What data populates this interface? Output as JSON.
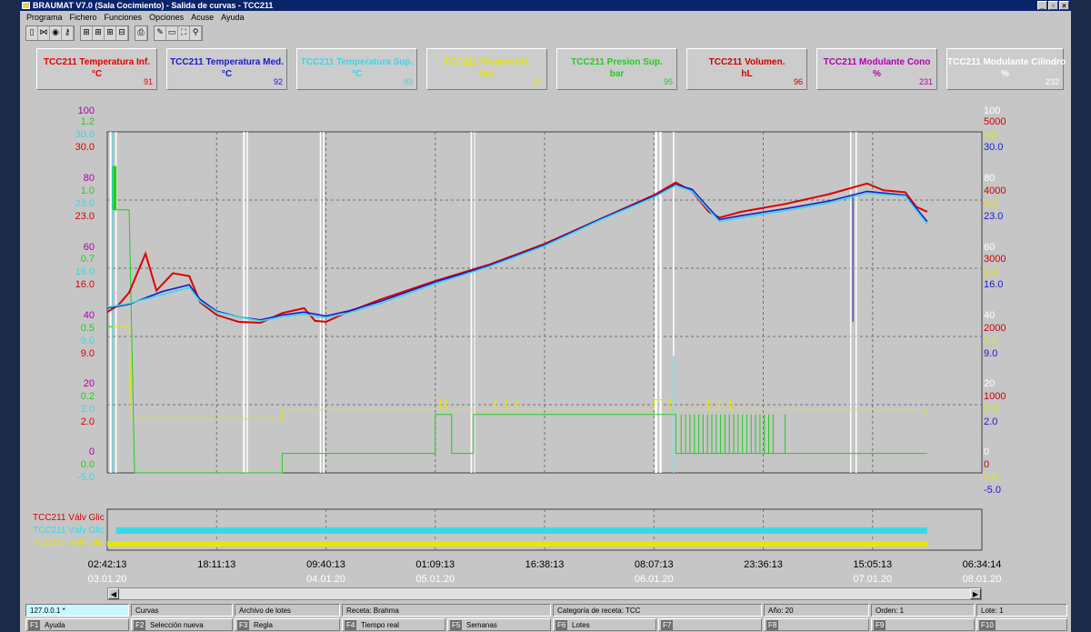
{
  "window": {
    "title": "BRAUMAT V7.0 (Sala Cocimiento) - Salida de curvas - TCC211",
    "buttons": [
      "_",
      "▫",
      "×"
    ]
  },
  "menu": [
    "Programa",
    "Fichero",
    "Funciones",
    "Opciones",
    "Acuse",
    "Ayuda"
  ],
  "toolbar_icons": [
    "document-icon",
    "split-icon",
    "record-icon",
    "key-icon",
    "grid-add-icon",
    "grid-edit-icon",
    "grid-icon",
    "grid-alt-icon",
    "print-icon",
    "edit-icon",
    "window-icon",
    "fit-icon",
    "zoom-icon"
  ],
  "channels": [
    {
      "name": "TCC211 Temperatura Inf.",
      "unit": "°C",
      "num": "91",
      "color": "#dd0000"
    },
    {
      "name": "TCC211 Temperatura Med.",
      "unit": "°C",
      "num": "92",
      "color": "#1a1acc"
    },
    {
      "name": "TCC211 Temperatura Sup.",
      "unit": "°C",
      "num": "93",
      "color": "#39d8e8"
    },
    {
      "name": "TCC211 Presion Inf.",
      "unit": "bar",
      "num": "94",
      "color": "#e6e600"
    },
    {
      "name": "TCC211 Presion Sup.",
      "unit": "bar",
      "num": "95",
      "color": "#22cc22"
    },
    {
      "name": "TCC211 Volumen.",
      "unit": "hL",
      "num": "96",
      "color": "#cc0000"
    },
    {
      "name": "TCC211 Modulante Cono",
      "unit": "%",
      "num": "231",
      "color": "#b000b0"
    },
    {
      "name": "TCC211 Modulante Cilindro",
      "unit": "%",
      "num": "232",
      "color": "#ffffff"
    }
  ],
  "chart_data": {
    "type": "line",
    "x_time_labels": [
      "02:42:13",
      "18:11:13",
      "09:40:13",
      "01:09:13",
      "16:38:13",
      "08:07:13",
      "23:36:13",
      "15:05:13",
      "06:34:14"
    ],
    "x_date_labels": [
      "03.01.20",
      "",
      "04.01.20",
      "05.01.20",
      "",
      "06.01.20",
      "",
      "07.01.20",
      "08.01.20"
    ],
    "left_axes": [
      {
        "color": "#b000b0",
        "ticks": [
          "100",
          "80",
          "60",
          "40",
          "20",
          "0"
        ]
      },
      {
        "color": "#22cc22",
        "ticks": [
          "1.2",
          "1.0",
          "0.7",
          "0.5",
          "0.2",
          "0.0"
        ]
      },
      {
        "color": "#39d8e8",
        "ticks": [
          "30.0",
          "23.0",
          "16.0",
          "9.0",
          "2.0",
          "-5.0"
        ]
      },
      {
        "color": "#dd0000",
        "ticks": [
          "30.0",
          "23.0",
          "16.0",
          "9.0",
          "2.0",
          "-5.0"
        ]
      }
    ],
    "right_axes": [
      {
        "color": "#ffffff",
        "ticks": [
          "100",
          "80",
          "60",
          "40",
          "20",
          "0"
        ]
      },
      {
        "color": "#cc0000",
        "ticks": [
          "5000",
          "4000",
          "3000",
          "2000",
          "1000",
          "0"
        ]
      },
      {
        "color": "#e6e600",
        "ticks": [
          "4.0",
          "3.2",
          "2.4",
          "1.6",
          "0.8",
          "0.0"
        ]
      },
      {
        "color": "#1a1acc",
        "ticks": [
          "30.0",
          "23.0",
          "16.0",
          "9.0",
          "2.0",
          "-5.0"
        ]
      }
    ],
    "x_index_range": [
      0,
      8
    ],
    "temperature_range": [
      -5,
      30
    ],
    "series": [
      {
        "name": "TCC211 Temperatura Inf.",
        "color": "#dd0000",
        "points": [
          [
            0,
            11.5
          ],
          [
            0.1,
            12.2
          ],
          [
            0.2,
            13.5
          ],
          [
            0.35,
            17.5
          ],
          [
            0.45,
            13.7
          ],
          [
            0.6,
            15.5
          ],
          [
            0.75,
            15.2
          ],
          [
            0.85,
            12.5
          ],
          [
            1,
            11.2
          ],
          [
            1.2,
            10.5
          ],
          [
            1.4,
            10.4
          ],
          [
            1.6,
            11.4
          ],
          [
            1.8,
            11.9
          ],
          [
            1.9,
            10.6
          ],
          [
            2.0,
            10.5
          ],
          [
            2.2,
            11.5
          ],
          [
            2.5,
            12.8
          ],
          [
            3,
            14.7
          ],
          [
            3.5,
            16.4
          ],
          [
            4,
            18.5
          ],
          [
            4.5,
            21.0
          ],
          [
            5,
            23.5
          ],
          [
            5.2,
            24.8
          ],
          [
            5.35,
            23.9
          ],
          [
            5.5,
            21.8
          ],
          [
            5.6,
            21.2
          ],
          [
            5.8,
            21.8
          ],
          [
            6.2,
            22.6
          ],
          [
            6.6,
            23.6
          ],
          [
            6.95,
            24.7
          ],
          [
            7.1,
            24.0
          ],
          [
            7.3,
            23.8
          ],
          [
            7.4,
            22.3
          ],
          [
            7.5,
            21.8
          ]
        ]
      },
      {
        "name": "TCC211 Temperatura Med.",
        "color": "#1a1acc",
        "points": [
          [
            0,
            11.9
          ],
          [
            0.2,
            12.3
          ],
          [
            0.5,
            13.6
          ],
          [
            0.75,
            14.3
          ],
          [
            0.85,
            12.8
          ],
          [
            1,
            11.6
          ],
          [
            1.2,
            11.0
          ],
          [
            1.4,
            10.7
          ],
          [
            1.6,
            11.2
          ],
          [
            1.8,
            11.5
          ],
          [
            2.0,
            11.1
          ],
          [
            2.2,
            11.6
          ],
          [
            2.5,
            12.6
          ],
          [
            3,
            14.6
          ],
          [
            3.5,
            16.3
          ],
          [
            4,
            18.4
          ],
          [
            4.5,
            21.0
          ],
          [
            5,
            23.4
          ],
          [
            5.2,
            24.6
          ],
          [
            5.35,
            24.1
          ],
          [
            5.5,
            22.2
          ],
          [
            5.6,
            21.0
          ],
          [
            5.8,
            21.4
          ],
          [
            6.2,
            22.1
          ],
          [
            6.6,
            22.9
          ],
          [
            6.95,
            23.9
          ],
          [
            7.3,
            23.5
          ],
          [
            7.5,
            20.8
          ]
        ]
      },
      {
        "name": "TCC211 Temperatura Sup.",
        "color": "#39d8e8",
        "points": [
          [
            0,
            12.0
          ],
          [
            0.2,
            12.4
          ],
          [
            0.5,
            13.3
          ],
          [
            0.75,
            14.0
          ],
          [
            0.85,
            12.6
          ],
          [
            1,
            11.5
          ],
          [
            1.2,
            11.0
          ],
          [
            1.4,
            10.6
          ],
          [
            1.6,
            11.0
          ],
          [
            1.8,
            11.3
          ],
          [
            2.0,
            10.9
          ],
          [
            2.2,
            11.4
          ],
          [
            2.5,
            12.4
          ],
          [
            3,
            14.4
          ],
          [
            3.5,
            16.2
          ],
          [
            4,
            18.3
          ],
          [
            4.5,
            20.9
          ],
          [
            5,
            23.3
          ],
          [
            5.2,
            24.5
          ],
          [
            5.35,
            23.9
          ],
          [
            5.5,
            22.0
          ],
          [
            5.6,
            20.8
          ],
          [
            5.8,
            21.2
          ],
          [
            6.2,
            21.9
          ],
          [
            6.6,
            22.7
          ],
          [
            6.95,
            23.7
          ],
          [
            7.3,
            23.4
          ],
          [
            7.5,
            20.5
          ]
        ]
      }
    ],
    "bottom_bars": [
      {
        "label": "TCC211 Válv Glic",
        "color": "#dd0000"
      },
      {
        "label": "TCC211 Válv Glic",
        "color": "#39d8e8"
      },
      {
        "label": "TCC211 Válv Glic",
        "color": "#e6e600"
      }
    ]
  },
  "statusbar": {
    "cells": [
      "127.0.0.1 *",
      "Curvas",
      "Archivo de lotes",
      "Receta: Brahma",
      "Categoría de receta: TCC",
      "Año: 20",
      "Orden: 1",
      "Lote: 1"
    ],
    "fkeys": [
      {
        "key": "F1",
        "label": "Ayuda"
      },
      {
        "key": "F2",
        "label": "Selección nueva"
      },
      {
        "key": "F3",
        "label": "Regla"
      },
      {
        "key": "F4",
        "label": "Tiempo real"
      },
      {
        "key": "F5",
        "label": "Semanas"
      },
      {
        "key": "F6",
        "label": "Lotes"
      },
      {
        "key": "F7",
        "label": ""
      },
      {
        "key": "F8",
        "label": ""
      },
      {
        "key": "F9",
        "label": ""
      },
      {
        "key": "F10",
        "label": ""
      }
    ]
  },
  "scroll_arrows": [
    "◀",
    "▶"
  ]
}
